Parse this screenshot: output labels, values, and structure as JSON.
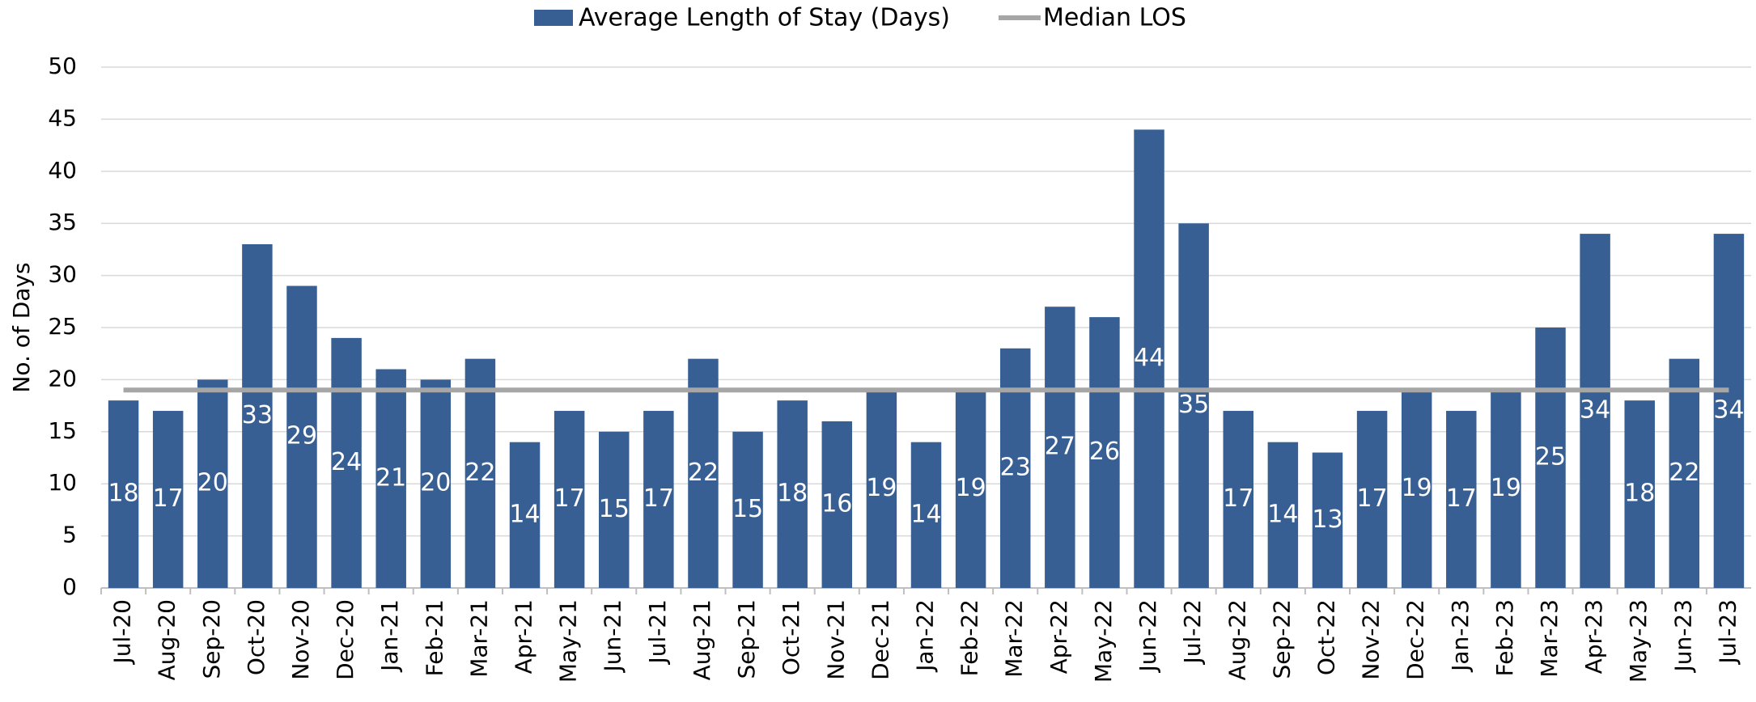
{
  "chart_data": {
    "type": "bar",
    "y_label": "No. of Days",
    "categories": [
      "Jul-20",
      "Aug-20",
      "Sep-20",
      "Oct-20",
      "Nov-20",
      "Dec-20",
      "Jan-21",
      "Feb-21",
      "Mar-21",
      "Apr-21",
      "May-21",
      "Jun-21",
      "Jul-21",
      "Aug-21",
      "Sep-21",
      "Oct-21",
      "Nov-21",
      "Dec-21",
      "Jan-22",
      "Feb-22",
      "Mar-22",
      "Apr-22",
      "May-22",
      "Jun-22",
      "Jul-22",
      "Aug-22",
      "Sep-22",
      "Oct-22",
      "Nov-22",
      "Dec-22",
      "Jan-23",
      "Feb-23",
      "Mar-23",
      "Apr-23",
      "May-23",
      "Jun-23",
      "Jul-23"
    ],
    "series": [
      {
        "name": "Average Length of Stay (Days)",
        "type": "bar",
        "color": "#375f93",
        "values": [
          18,
          17,
          20,
          33,
          29,
          24,
          21,
          20,
          22,
          14,
          17,
          15,
          17,
          22,
          15,
          18,
          16,
          19,
          14,
          19,
          23,
          27,
          26,
          44,
          35,
          17,
          14,
          13,
          17,
          19,
          17,
          19,
          25,
          34,
          18,
          22,
          34
        ]
      },
      {
        "name": "Median LOS",
        "type": "line",
        "color": "#a6a6a6",
        "values": [
          19,
          19,
          19,
          19,
          19,
          19,
          19,
          19,
          19,
          19,
          19,
          19,
          19,
          19,
          19,
          19,
          19,
          19,
          19,
          19,
          19,
          19,
          19,
          19,
          19,
          19,
          19,
          19,
          19,
          19,
          19,
          19,
          19,
          19,
          19,
          19,
          19
        ]
      }
    ],
    "ylim": [
      0,
      50
    ],
    "yticks": [
      0,
      5,
      10,
      15,
      20,
      25,
      30,
      35,
      40,
      45,
      50
    ],
    "grid": true,
    "legend": "top"
  }
}
